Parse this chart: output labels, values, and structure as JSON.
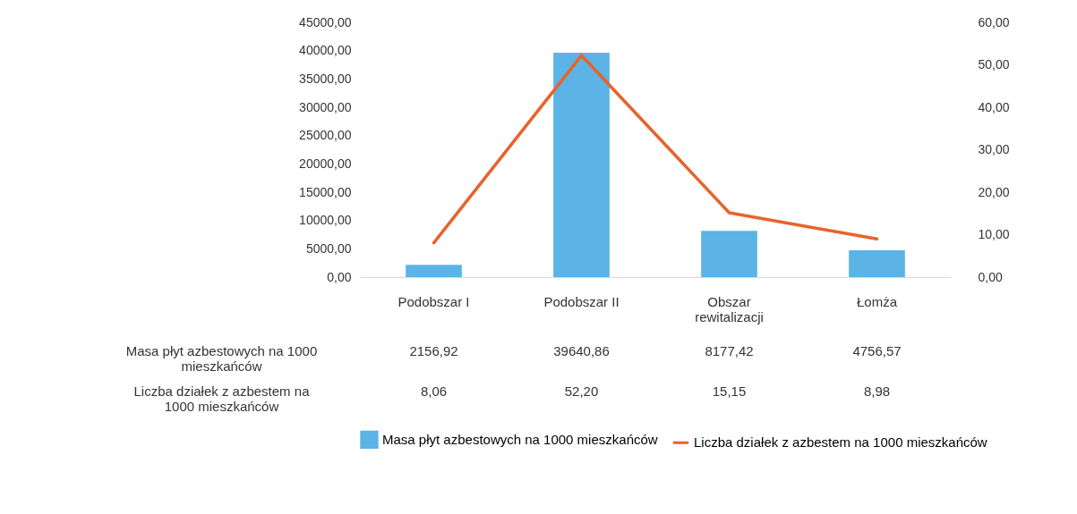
{
  "chart_data": {
    "type": "bar",
    "categories": [
      "Podobszar I",
      "Podobszar II",
      "Obszar rewitalizacji",
      "Łomża"
    ],
    "series": [
      {
        "name": "Masa płyt azbestowych na 1000 mieszkańców",
        "color": "#5bb4e5",
        "values": [
          2156.92,
          39640.86,
          8177.42,
          4756.57
        ],
        "value_labels": [
          "2156,92",
          "39640,86",
          "8177,42",
          "4756,57"
        ]
      },
      {
        "name": "Liczba działek z azbestem na 1000 mieszkańców",
        "type": "line",
        "axis": "y2",
        "color": "#e8632a",
        "values": [
          8.06,
          52.2,
          15.15,
          8.98
        ],
        "value_labels": [
          "8,06",
          "52,20",
          "15,15",
          "8,98"
        ]
      }
    ],
    "ylim": [
      0,
      45000
    ],
    "yticks": [
      {
        "value": 0,
        "label": "0,00"
      },
      {
        "value": 5000,
        "label": "5000,00"
      },
      {
        "value": 10000,
        "label": "10000,00"
      },
      {
        "value": 15000,
        "label": "15000,00"
      },
      {
        "value": 20000,
        "label": "20000,00"
      },
      {
        "value": 25000,
        "label": "25000,00"
      },
      {
        "value": 30000,
        "label": "30000,00"
      },
      {
        "value": 35000,
        "label": "35000,00"
      },
      {
        "value": 40000,
        "label": "40000,00"
      },
      {
        "value": 45000,
        "label": "45000,00"
      }
    ],
    "y2lim": [
      0,
      60
    ],
    "y2ticks": [
      {
        "value": 0,
        "label": "0,00"
      },
      {
        "value": 10,
        "label": "10,00"
      },
      {
        "value": 20,
        "label": "20,00"
      },
      {
        "value": 30,
        "label": "30,00"
      },
      {
        "value": 40,
        "label": "40,00"
      },
      {
        "value": 50,
        "label": "50,00"
      },
      {
        "value": 60,
        "label": "60,00"
      }
    ],
    "legend": "bottom",
    "grid": false
  }
}
